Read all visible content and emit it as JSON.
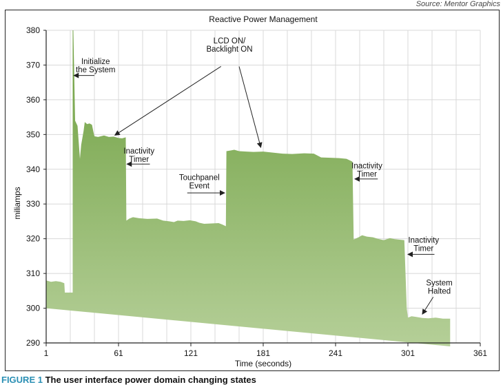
{
  "source": "Source: Mentor Graphics",
  "caption": {
    "figure_label": "FIGURE 1",
    "text": " The user interface power domain changing states"
  },
  "colors": {
    "area_top": "#6d9f3f",
    "area_bottom": "#b5cf98",
    "grid": "#d8d8d8",
    "axis": "#222222",
    "caption_accent": "#2a8fb4"
  },
  "chart_data": {
    "type": "area",
    "title": "Reactive Power Management",
    "xlabel": "Time (seconds)",
    "ylabel": "miliamps",
    "xlim": [
      1,
      361
    ],
    "ylim": [
      290,
      380
    ],
    "xticks": [
      1,
      61,
      121,
      181,
      241,
      301,
      361
    ],
    "xtick_labels": [
      "1",
      "61",
      "121",
      "181",
      "241",
      "301",
      "361"
    ],
    "yticks": [
      290,
      300,
      310,
      320,
      330,
      340,
      350,
      360,
      370,
      380
    ],
    "ytick_labels": [
      "290",
      "300",
      "310",
      "320",
      "330",
      "340",
      "350",
      "360",
      "370",
      "380"
    ],
    "grid": true,
    "series": [
      {
        "upper": [
          [
            1,
            308
          ],
          [
            5,
            307.6
          ],
          [
            9,
            307.8
          ],
          [
            13,
            307.6
          ],
          [
            16,
            307.2
          ],
          [
            16.5,
            304.5
          ],
          [
            23,
            304.5
          ],
          [
            23,
            380
          ],
          [
            23.5,
            380
          ],
          [
            25,
            354
          ],
          [
            27,
            352.5
          ],
          [
            29,
            343
          ],
          [
            30,
            347
          ],
          [
            32,
            351
          ],
          [
            33,
            353.6
          ],
          [
            35,
            353
          ],
          [
            37,
            353.2
          ],
          [
            39,
            352.8
          ],
          [
            40,
            351
          ],
          [
            41,
            349.5
          ],
          [
            44,
            349.3
          ],
          [
            49,
            349.7
          ],
          [
            53,
            349.3
          ],
          [
            57,
            349.4
          ],
          [
            61,
            349
          ],
          [
            64,
            348.9
          ],
          [
            67,
            349.2
          ],
          [
            67.5,
            325.2
          ],
          [
            70,
            325.8
          ],
          [
            73,
            326.2
          ],
          [
            78,
            325.9
          ],
          [
            85,
            325.7
          ],
          [
            93,
            325.8
          ],
          [
            98,
            325.2
          ],
          [
            103,
            325
          ],
          [
            107,
            324.8
          ],
          [
            110,
            325.2
          ],
          [
            115,
            325.1
          ],
          [
            120,
            325.3
          ],
          [
            125,
            325
          ],
          [
            128,
            324.6
          ],
          [
            132,
            324.3
          ],
          [
            138,
            324.4
          ],
          [
            144,
            324.5
          ],
          [
            147,
            324.1
          ],
          [
            150,
            323.6
          ],
          [
            150.5,
            345.2
          ],
          [
            154,
            345.4
          ],
          [
            157,
            345.6
          ],
          [
            161,
            345.2
          ],
          [
            167,
            345.1
          ],
          [
            173,
            345
          ],
          [
            181,
            345.1
          ],
          [
            189,
            344.8
          ],
          [
            197,
            344.5
          ],
          [
            205,
            344.4
          ],
          [
            215,
            344.6
          ],
          [
            223,
            344.5
          ],
          [
            229,
            343.4
          ],
          [
            237,
            343.3
          ],
          [
            244,
            343.2
          ],
          [
            250,
            343
          ],
          [
            255,
            342.2
          ],
          [
            256,
            319.8
          ],
          [
            260,
            320.4
          ],
          [
            263,
            321
          ],
          [
            267,
            320.6
          ],
          [
            272,
            320.4
          ],
          [
            276,
            320
          ],
          [
            281,
            319.6
          ],
          [
            286,
            320.2
          ],
          [
            290,
            319.9
          ],
          [
            298,
            319.6
          ],
          [
            300,
            300
          ],
          [
            301,
            297.3
          ],
          [
            304,
            297.7
          ],
          [
            308,
            297.5
          ],
          [
            313,
            297.2
          ],
          [
            318,
            297.1
          ],
          [
            324,
            297.3
          ],
          [
            330,
            297
          ],
          [
            336,
            297
          ],
          [
            336,
            289
          ]
        ],
        "lower": [
          [
            1,
            300
          ],
          [
            336,
            289
          ]
        ]
      }
    ],
    "annotations": [
      {
        "id": "initialize",
        "lines": [
          "Initialize",
          "the System"
        ],
        "text_x": 42,
        "text_y": 370.3,
        "anchor": "middle",
        "arrow_from": [
          41,
          367
        ],
        "arrow_to": [
          24,
          367
        ],
        "arrow_head": true
      },
      {
        "id": "lcd-on",
        "lines": [
          "LCD ON/",
          "Backlight ON"
        ],
        "text_x": 153,
        "text_y": 376.2,
        "anchor": "middle",
        "arrow_from": [
          146,
          369.6
        ],
        "arrow_to": [
          58,
          349.8
        ],
        "arrow_head": true,
        "second_arrow_from": [
          161,
          369.6
        ],
        "second_arrow_to": [
          179,
          346.3
        ]
      },
      {
        "id": "inactivity-1",
        "lines": [
          "Inactivity",
          "Timer"
        ],
        "text_x": 78,
        "text_y": 344.5,
        "anchor": "middle",
        "arrow_from": [
          87,
          341.5
        ],
        "arrow_to": [
          68,
          341.5
        ],
        "arrow_head": true
      },
      {
        "id": "touchpanel",
        "lines": [
          "Touchpanel",
          "Event"
        ],
        "text_x": 128,
        "text_y": 336.9,
        "anchor": "middle",
        "arrow_from": [
          118,
          333.2
        ],
        "arrow_to": [
          149,
          333.2
        ],
        "arrow_head": true
      },
      {
        "id": "inactivity-2",
        "lines": [
          "Inactivity",
          "Timer"
        ],
        "text_x": 267,
        "text_y": 340.3,
        "anchor": "middle",
        "arrow_from": [
          276,
          337.2
        ],
        "arrow_to": [
          257,
          337.2
        ],
        "arrow_head": true
      },
      {
        "id": "inactivity-3",
        "lines": [
          "Inactivity",
          "Timer"
        ],
        "text_x": 314,
        "text_y": 318.8,
        "anchor": "middle",
        "arrow_from": [
          323,
          315.5
        ],
        "arrow_to": [
          301,
          315.5
        ],
        "arrow_head": true
      },
      {
        "id": "system-halted",
        "lines": [
          "System",
          "Halted"
        ],
        "text_x": 327,
        "text_y": 306.6,
        "anchor": "middle",
        "arrow_from": [
          322,
          303.2
        ],
        "arrow_to": [
          313,
          298.3
        ],
        "arrow_head": true
      }
    ]
  }
}
